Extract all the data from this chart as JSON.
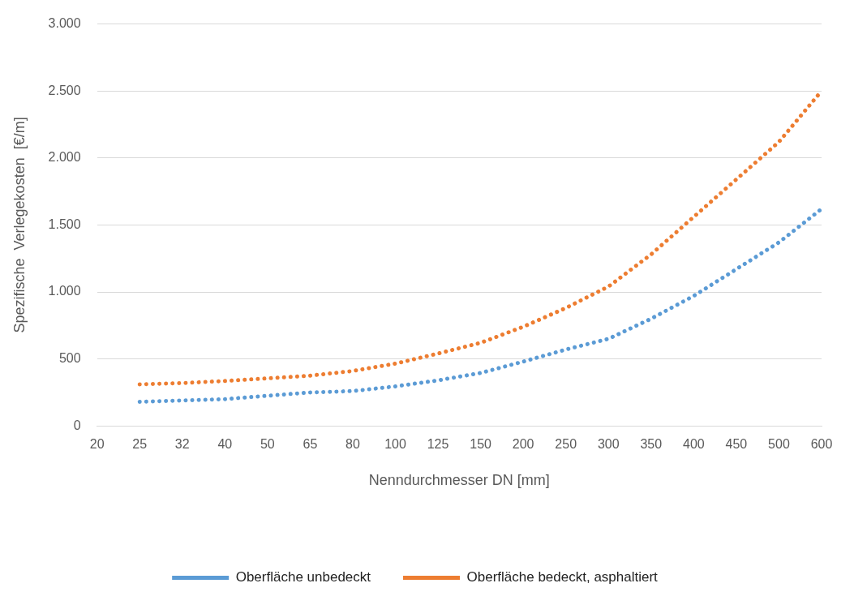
{
  "chart_data": {
    "type": "line",
    "xlabel": "Nenndurchmesser DN [mm]",
    "ylabel": "Spezifische  Verlegekosten  [€/m]",
    "categories": [
      "20",
      "25",
      "32",
      "40",
      "50",
      "65",
      "80",
      "100",
      "125",
      "150",
      "200",
      "250",
      "300",
      "350",
      "400",
      "450",
      "500",
      "600"
    ],
    "series": [
      {
        "name": "Oberfläche unbedeckt",
        "color": "#5b9bd5",
        "values": [
          null,
          180,
          190,
          200,
          225,
          250,
          260,
          295,
          340,
          395,
          480,
          570,
          650,
          800,
          970,
          1170,
          1370,
          1620
        ]
      },
      {
        "name": "Oberfläche bedeckt, asphaltiert",
        "color": "#ed7d31",
        "values": [
          null,
          310,
          320,
          335,
          355,
          375,
          410,
          465,
          540,
          620,
          740,
          880,
          1040,
          1280,
          1560,
          1840,
          2120,
          2500
        ]
      }
    ],
    "ylim": [
      0,
      3000
    ],
    "yticks": [
      0,
      500,
      {
        "value": 1000,
        "label": "1.000"
      },
      {
        "value": 1500,
        "label": "1.500"
      },
      {
        "value": 2000,
        "label": "2.000"
      },
      {
        "value": 2500,
        "label": "2.500"
      },
      {
        "value": 3000,
        "label": "3.000"
      }
    ],
    "grid": "y",
    "legend": "bottom",
    "marker": "none",
    "line_style": "dotted"
  }
}
